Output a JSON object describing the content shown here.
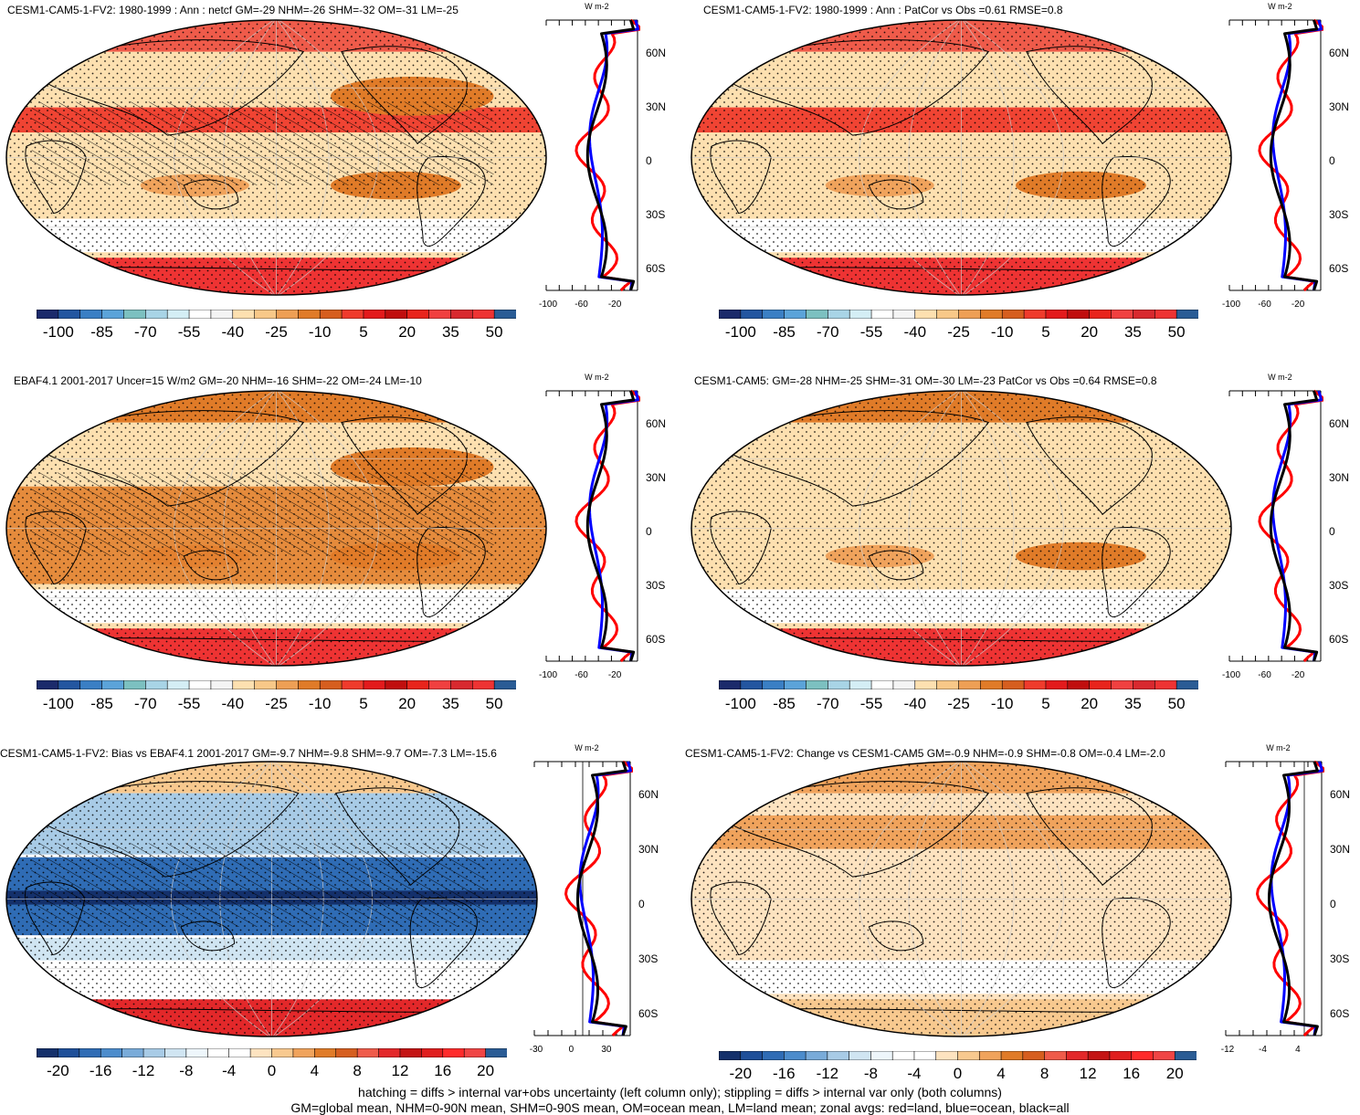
{
  "panels": [
    {
      "id": "p1",
      "title": "CESM1-CAM5-1-FV2: 1980-1999 : Ann : netcf GM=-29 NHM=-26 SHM=-32 OM=-31 LM=-25",
      "cbar_labels": [
        "-100",
        "-85",
        "-70",
        "-55",
        "-40",
        "-25",
        "-10",
        "5",
        "20",
        "35",
        "50"
      ],
      "lat_labels": [
        "60N",
        "30N",
        "0",
        "30S",
        "60S"
      ],
      "x_ticks": [
        "-100",
        "-60",
        "-20"
      ],
      "unit": "W m-2",
      "palette": "full",
      "hatched": true
    },
    {
      "id": "p2",
      "title": "CESM1-CAM5-1-FV2: 1980-1999 : Ann : PatCor vs Obs =0.61 RMSE=0.8",
      "cbar_labels": [
        "-100",
        "-85",
        "-70",
        "-55",
        "-40",
        "-25",
        "-10",
        "5",
        "20",
        "35",
        "50"
      ],
      "lat_labels": [
        "60N",
        "30N",
        "0",
        "30S",
        "60S"
      ],
      "x_ticks": [
        "-100",
        "-60",
        "-20"
      ],
      "unit": "W m-2",
      "palette": "full",
      "hatched": false
    },
    {
      "id": "p3",
      "title": "EBAF4.1 2001-2017 Uncer=15 W/m2 GM=-20 NHM=-16 SHM=-22 OM=-24 LM=-10",
      "cbar_labels": [
        "-100",
        "-85",
        "-70",
        "-55",
        "-40",
        "-25",
        "-10",
        "5",
        "20",
        "35",
        "50"
      ],
      "lat_labels": [
        "60N",
        "30N",
        "0",
        "30S",
        "60S"
      ],
      "x_ticks": [
        "-100",
        "-60",
        "-20"
      ],
      "unit": "W m-2",
      "palette": "full",
      "hatched": true
    },
    {
      "id": "p4",
      "title": "CESM1-CAM5: GM=-28 NHM=-25 SHM=-31 OM=-30 LM=-23 PatCor vs Obs =0.64 RMSE=0.8",
      "cbar_labels": [
        "-100",
        "-85",
        "-70",
        "-55",
        "-40",
        "-25",
        "-10",
        "5",
        "20",
        "35",
        "50"
      ],
      "lat_labels": [
        "60N",
        "30N",
        "0",
        "30S",
        "60S"
      ],
      "x_ticks": [
        "-100",
        "-60",
        "-20"
      ],
      "unit": "W m-2",
      "palette": "full",
      "hatched": false
    },
    {
      "id": "p5",
      "title": "CESM1-CAM5-1-FV2: Bias vs EBAF4.1 2001-2017 GM=-9.7 NHM=-9.8 SHM=-9.7 OM=-7.3 LM=-15.6",
      "cbar_labels": [
        "-20",
        "-16",
        "-12",
        "-8",
        "-4",
        "0",
        "4",
        "8",
        "12",
        "16",
        "20"
      ],
      "lat_labels": [
        "60N",
        "30N",
        "0",
        "30S",
        "60S"
      ],
      "x_ticks": [
        "-30",
        "0",
        "30"
      ],
      "unit": "W m-2",
      "palette": "diff",
      "hatched": true
    },
    {
      "id": "p6",
      "title": "CESM1-CAM5-1-FV2: Change vs CESM1-CAM5 GM=-0.9 NHM=-0.9 SHM=-0.8 OM=-0.4 LM=-2.0",
      "cbar_labels": [
        "-20",
        "-16",
        "-12",
        "-8",
        "-4",
        "0",
        "4",
        "8",
        "12",
        "16",
        "20"
      ],
      "lat_labels": [
        "60N",
        "30N",
        "0",
        "30S",
        "60S"
      ],
      "x_ticks": [
        "-12",
        "-4",
        "4"
      ],
      "unit": "W m-2",
      "palette": "diff",
      "hatched": false
    }
  ],
  "colors": {
    "full": [
      "#1b2a6b",
      "#2356a0",
      "#3a7fc4",
      "#5ba3d9",
      "#7cc0c0",
      "#a8d4e6",
      "#d4eef5",
      "#ffffff",
      "#f4f4f4",
      "#fde0b0",
      "#f8c888",
      "#ee9f55",
      "#e07b28",
      "#d65e1f",
      "#ef3b2c",
      "#e31a1c",
      "#c00e0e",
      "#e8241c",
      "#f04040",
      "#d8292f",
      "#ee3333",
      "#2a5c95"
    ],
    "diff": [
      "#14306b",
      "#1e4f99",
      "#2f6cb5",
      "#4c8ccc",
      "#79abd9",
      "#a8cbe6",
      "#d0e5f2",
      "#eef6fb",
      "#ffffff",
      "#ffffff",
      "#fde3c0",
      "#f8c98f",
      "#f0a35c",
      "#e07b28",
      "#d65e1f",
      "#ef5b4a",
      "#e3282a",
      "#c41414",
      "#e01e1e",
      "#ff2b2b",
      "#f04545",
      "#2a5c95"
    ],
    "land_line": "#ff0000",
    "ocean_line": "#0000ff",
    "all_line": "#000000"
  },
  "footer": {
    "line1": "hatching = diffs > internal var+obs uncertainty (left column only); stippling = diffs > internal var only (both columns)",
    "line2": "GM=global mean, NHM=0-90N mean, SHM=0-90S mean, OM=ocean mean, LM=land mean; zonal avgs: red=land, blue=ocean, black=all"
  }
}
